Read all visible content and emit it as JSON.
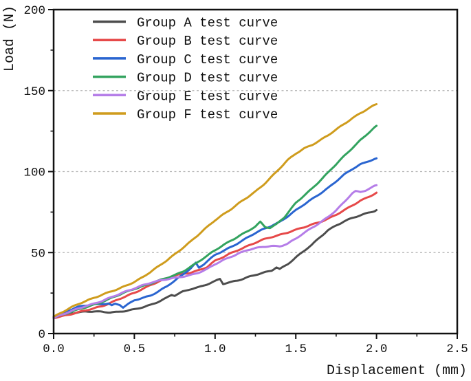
{
  "chart_data": {
    "type": "line",
    "title": "",
    "xlabel": "Displacement (mm)",
    "ylabel": "Load (N)",
    "xlim": [
      0,
      2.5
    ],
    "ylim": [
      0,
      200
    ],
    "x_ticks": [
      {
        "value": 0.0,
        "label": "0.0"
      },
      {
        "value": 0.5,
        "label": "0.5"
      },
      {
        "value": 1.0,
        "label": "1.0"
      },
      {
        "value": 1.5,
        "label": "1.5"
      },
      {
        "value": 2.0,
        "label": "2.0"
      },
      {
        "value": 2.5,
        "label": "2.5"
      }
    ],
    "y_ticks": [
      {
        "value": 0,
        "label": "0"
      },
      {
        "value": 50,
        "label": "50"
      },
      {
        "value": 100,
        "label": "100"
      },
      {
        "value": 150,
        "label": "150"
      },
      {
        "value": 200,
        "label": "200"
      }
    ],
    "x_minor_ticks": [
      0.25,
      0.75,
      1.25,
      1.75,
      2.25
    ],
    "y_minor_ticks": [
      25,
      75,
      125,
      175
    ],
    "grid": {
      "horizontal_at": [
        50,
        100,
        150
      ],
      "style": "dashed",
      "color": "#b3b3b3"
    },
    "legend": {
      "position": "top-left",
      "border": "none"
    },
    "axis_color": "#111111",
    "series": [
      {
        "name": "Group A test curve",
        "color": "#4d4d4d",
        "points": [
          [
            0,
            10
          ],
          [
            0.05,
            11.4
          ],
          [
            0.1,
            12.4
          ],
          [
            0.15,
            13
          ],
          [
            0.2,
            13.4
          ],
          [
            0.25,
            13.6
          ],
          [
            0.3,
            13.5
          ],
          [
            0.35,
            13.2
          ],
          [
            0.4,
            13.4
          ],
          [
            0.45,
            13.9
          ],
          [
            0.5,
            14.8
          ],
          [
            0.55,
            16.2
          ],
          [
            0.6,
            17.8
          ],
          [
            0.65,
            19.8
          ],
          [
            0.7,
            22
          ],
          [
            0.73,
            23.8
          ],
          [
            0.75,
            23.3
          ],
          [
            0.8,
            25.8
          ],
          [
            0.85,
            27.6
          ],
          [
            0.9,
            28.8
          ],
          [
            0.95,
            30.4
          ],
          [
            1.0,
            32.2
          ],
          [
            1.03,
            33.6
          ],
          [
            1.05,
            30.6
          ],
          [
            1.1,
            31.8
          ],
          [
            1.15,
            33.2
          ],
          [
            1.2,
            34.8
          ],
          [
            1.25,
            36.2
          ],
          [
            1.3,
            37.4
          ],
          [
            1.35,
            38.8
          ],
          [
            1.38,
            41
          ],
          [
            1.4,
            39.9
          ],
          [
            1.45,
            43
          ],
          [
            1.5,
            47
          ],
          [
            1.55,
            50.8
          ],
          [
            1.6,
            54.8
          ],
          [
            1.65,
            59.5
          ],
          [
            1.7,
            64
          ],
          [
            1.75,
            66.8
          ],
          [
            1.8,
            69.2
          ],
          [
            1.85,
            71.2
          ],
          [
            1.9,
            73
          ],
          [
            1.95,
            74.7
          ],
          [
            2.0,
            76.2
          ]
        ]
      },
      {
        "name": "Group B test curve",
        "color": "#e64949",
        "points": [
          [
            0,
            9.8
          ],
          [
            0.1,
            11.8
          ],
          [
            0.2,
            14.2
          ],
          [
            0.3,
            17
          ],
          [
            0.4,
            21
          ],
          [
            0.5,
            25
          ],
          [
            0.55,
            27.6
          ],
          [
            0.6,
            30
          ],
          [
            0.65,
            32.2
          ],
          [
            0.7,
            34
          ],
          [
            0.75,
            35.8
          ],
          [
            0.8,
            36.8
          ],
          [
            0.85,
            37.8
          ],
          [
            0.9,
            39.2
          ],
          [
            0.95,
            41
          ],
          [
            1.0,
            44.8
          ],
          [
            1.05,
            47.2
          ],
          [
            1.1,
            49.8
          ],
          [
            1.15,
            52
          ],
          [
            1.2,
            54
          ],
          [
            1.25,
            56
          ],
          [
            1.3,
            58
          ],
          [
            1.35,
            59.6
          ],
          [
            1.4,
            61
          ],
          [
            1.45,
            62.5
          ],
          [
            1.5,
            64
          ],
          [
            1.55,
            65.5
          ],
          [
            1.6,
            67.2
          ],
          [
            1.65,
            69
          ],
          [
            1.7,
            71
          ],
          [
            1.75,
            73.4
          ],
          [
            1.8,
            76
          ],
          [
            1.85,
            79
          ],
          [
            1.9,
            82
          ],
          [
            1.95,
            84.5
          ],
          [
            2.0,
            87
          ]
        ]
      },
      {
        "name": "Group C test curve",
        "color": "#2a65d0",
        "points": [
          [
            0,
            10
          ],
          [
            0.05,
            12.4
          ],
          [
            0.1,
            14.5
          ],
          [
            0.15,
            16.3
          ],
          [
            0.2,
            17.3
          ],
          [
            0.25,
            18
          ],
          [
            0.3,
            18.4
          ],
          [
            0.34,
            18.6
          ],
          [
            0.36,
            17.3
          ],
          [
            0.38,
            18.3
          ],
          [
            0.41,
            17.7
          ],
          [
            0.43,
            15.9
          ],
          [
            0.46,
            17.9
          ],
          [
            0.5,
            20.6
          ],
          [
            0.55,
            22
          ],
          [
            0.6,
            23.6
          ],
          [
            0.65,
            26
          ],
          [
            0.7,
            29
          ],
          [
            0.75,
            32.5
          ],
          [
            0.8,
            36.5
          ],
          [
            0.85,
            40.5
          ],
          [
            0.88,
            43.6
          ],
          [
            0.9,
            40.7
          ],
          [
            0.93,
            42.8
          ],
          [
            1.0,
            48.4
          ],
          [
            1.05,
            51
          ],
          [
            1.1,
            53.6
          ],
          [
            1.15,
            56.4
          ],
          [
            1.2,
            59.2
          ],
          [
            1.25,
            62
          ],
          [
            1.3,
            64.4
          ],
          [
            1.35,
            66.6
          ],
          [
            1.4,
            69
          ],
          [
            1.45,
            72.4
          ],
          [
            1.5,
            76
          ],
          [
            1.55,
            79.5
          ],
          [
            1.6,
            83
          ],
          [
            1.65,
            86.5
          ],
          [
            1.7,
            90
          ],
          [
            1.75,
            94
          ],
          [
            1.8,
            98
          ],
          [
            1.85,
            101.5
          ],
          [
            1.9,
            104.5
          ],
          [
            1.95,
            106.6
          ],
          [
            2.0,
            108.2
          ]
        ]
      },
      {
        "name": "Group D test curve",
        "color": "#33a35f",
        "points": [
          [
            0,
            10
          ],
          [
            0.1,
            13
          ],
          [
            0.2,
            16.2
          ],
          [
            0.3,
            19.6
          ],
          [
            0.4,
            23.6
          ],
          [
            0.5,
            27.6
          ],
          [
            0.6,
            31
          ],
          [
            0.65,
            32.6
          ],
          [
            0.7,
            34.2
          ],
          [
            0.75,
            36
          ],
          [
            0.8,
            38.4
          ],
          [
            0.85,
            41.4
          ],
          [
            0.9,
            44.6
          ],
          [
            0.95,
            47.8
          ],
          [
            1.0,
            51.4
          ],
          [
            1.05,
            54.6
          ],
          [
            1.1,
            57.6
          ],
          [
            1.15,
            60.4
          ],
          [
            1.2,
            63
          ],
          [
            1.25,
            66
          ],
          [
            1.28,
            68.8
          ],
          [
            1.31,
            65.8
          ],
          [
            1.34,
            65.4
          ],
          [
            1.38,
            67.6
          ],
          [
            1.43,
            72
          ],
          [
            1.5,
            80.5
          ],
          [
            1.55,
            85
          ],
          [
            1.6,
            89.5
          ],
          [
            1.65,
            94.5
          ],
          [
            1.7,
            99.5
          ],
          [
            1.75,
            104.5
          ],
          [
            1.8,
            109.5
          ],
          [
            1.85,
            114.5
          ],
          [
            1.9,
            119.5
          ],
          [
            1.95,
            124
          ],
          [
            2.0,
            128.3
          ]
        ]
      },
      {
        "name": "Group E test curve",
        "color": "#b57de8",
        "points": [
          [
            0,
            9.8
          ],
          [
            0.1,
            13.4
          ],
          [
            0.2,
            17
          ],
          [
            0.25,
            18.6
          ],
          [
            0.3,
            20.2
          ],
          [
            0.4,
            24
          ],
          [
            0.5,
            28
          ],
          [
            0.55,
            29.9
          ],
          [
            0.6,
            31.4
          ],
          [
            0.65,
            32.4
          ],
          [
            0.7,
            33.4
          ],
          [
            0.75,
            34.4
          ],
          [
            0.8,
            35.3
          ],
          [
            0.85,
            36.2
          ],
          [
            0.9,
            37.6
          ],
          [
            0.95,
            39.6
          ],
          [
            1.0,
            42.8
          ],
          [
            1.05,
            45.4
          ],
          [
            1.1,
            47.6
          ],
          [
            1.15,
            49.6
          ],
          [
            1.2,
            51.4
          ],
          [
            1.25,
            52.6
          ],
          [
            1.3,
            53.6
          ],
          [
            1.35,
            54.2
          ],
          [
            1.4,
            53.9
          ],
          [
            1.45,
            55.4
          ],
          [
            1.5,
            58.5
          ],
          [
            1.55,
            62
          ],
          [
            1.6,
            65.4
          ],
          [
            1.65,
            68.6
          ],
          [
            1.7,
            72
          ],
          [
            1.75,
            76
          ],
          [
            1.8,
            81
          ],
          [
            1.85,
            86.8
          ],
          [
            1.87,
            88
          ],
          [
            1.9,
            87.4
          ],
          [
            1.93,
            88.4
          ],
          [
            2.0,
            91.6
          ]
        ]
      },
      {
        "name": "Group F test curve",
        "color": "#cf9c1d",
        "points": [
          [
            0,
            10.4
          ],
          [
            0.05,
            13
          ],
          [
            0.1,
            15.6
          ],
          [
            0.15,
            18
          ],
          [
            0.2,
            20.2
          ],
          [
            0.25,
            22.2
          ],
          [
            0.3,
            24
          ],
          [
            0.35,
            25.7
          ],
          [
            0.4,
            27.4
          ],
          [
            0.45,
            29.6
          ],
          [
            0.5,
            32
          ],
          [
            0.55,
            34.8
          ],
          [
            0.6,
            38
          ],
          [
            0.65,
            41.4
          ],
          [
            0.7,
            45
          ],
          [
            0.75,
            49
          ],
          [
            0.8,
            53
          ],
          [
            0.85,
            57
          ],
          [
            0.9,
            61.2
          ],
          [
            0.95,
            65.6
          ],
          [
            1.0,
            70
          ],
          [
            1.05,
            73.6
          ],
          [
            1.1,
            77
          ],
          [
            1.15,
            80.6
          ],
          [
            1.2,
            84
          ],
          [
            1.25,
            87.6
          ],
          [
            1.3,
            92
          ],
          [
            1.35,
            97
          ],
          [
            1.4,
            102
          ],
          [
            1.45,
            107
          ],
          [
            1.5,
            111
          ],
          [
            1.55,
            114.2
          ],
          [
            1.6,
            116.6
          ],
          [
            1.65,
            119.4
          ],
          [
            1.7,
            122.4
          ],
          [
            1.75,
            125.8
          ],
          [
            1.8,
            129.4
          ],
          [
            1.85,
            133
          ],
          [
            1.9,
            136.2
          ],
          [
            1.95,
            139
          ],
          [
            2.0,
            141.6
          ]
        ]
      }
    ]
  }
}
